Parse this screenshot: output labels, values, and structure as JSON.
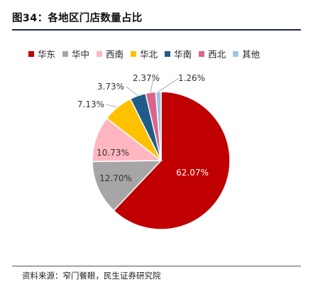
{
  "title": "图34：各地区门店数量占比",
  "source": "资料来源：窄门餐眼，民生证券研究院",
  "chart_data": {
    "type": "pie",
    "categories": [
      "华东",
      "华中",
      "西南",
      "华北",
      "华南",
      "西北",
      "其他"
    ],
    "values": [
      62.07,
      12.7,
      10.73,
      7.13,
      3.73,
      2.37,
      1.26
    ],
    "labels": [
      "62.07%",
      "12.70%",
      "10.73%",
      "7.13%",
      "3.73%",
      "2.37%",
      "1.26%"
    ],
    "colors": [
      "#c00000",
      "#a6a6a6",
      "#ffb6c1",
      "#ffc000",
      "#1f5c8b",
      "#d9668a",
      "#9dc3e6"
    ],
    "legend_position": "top"
  }
}
